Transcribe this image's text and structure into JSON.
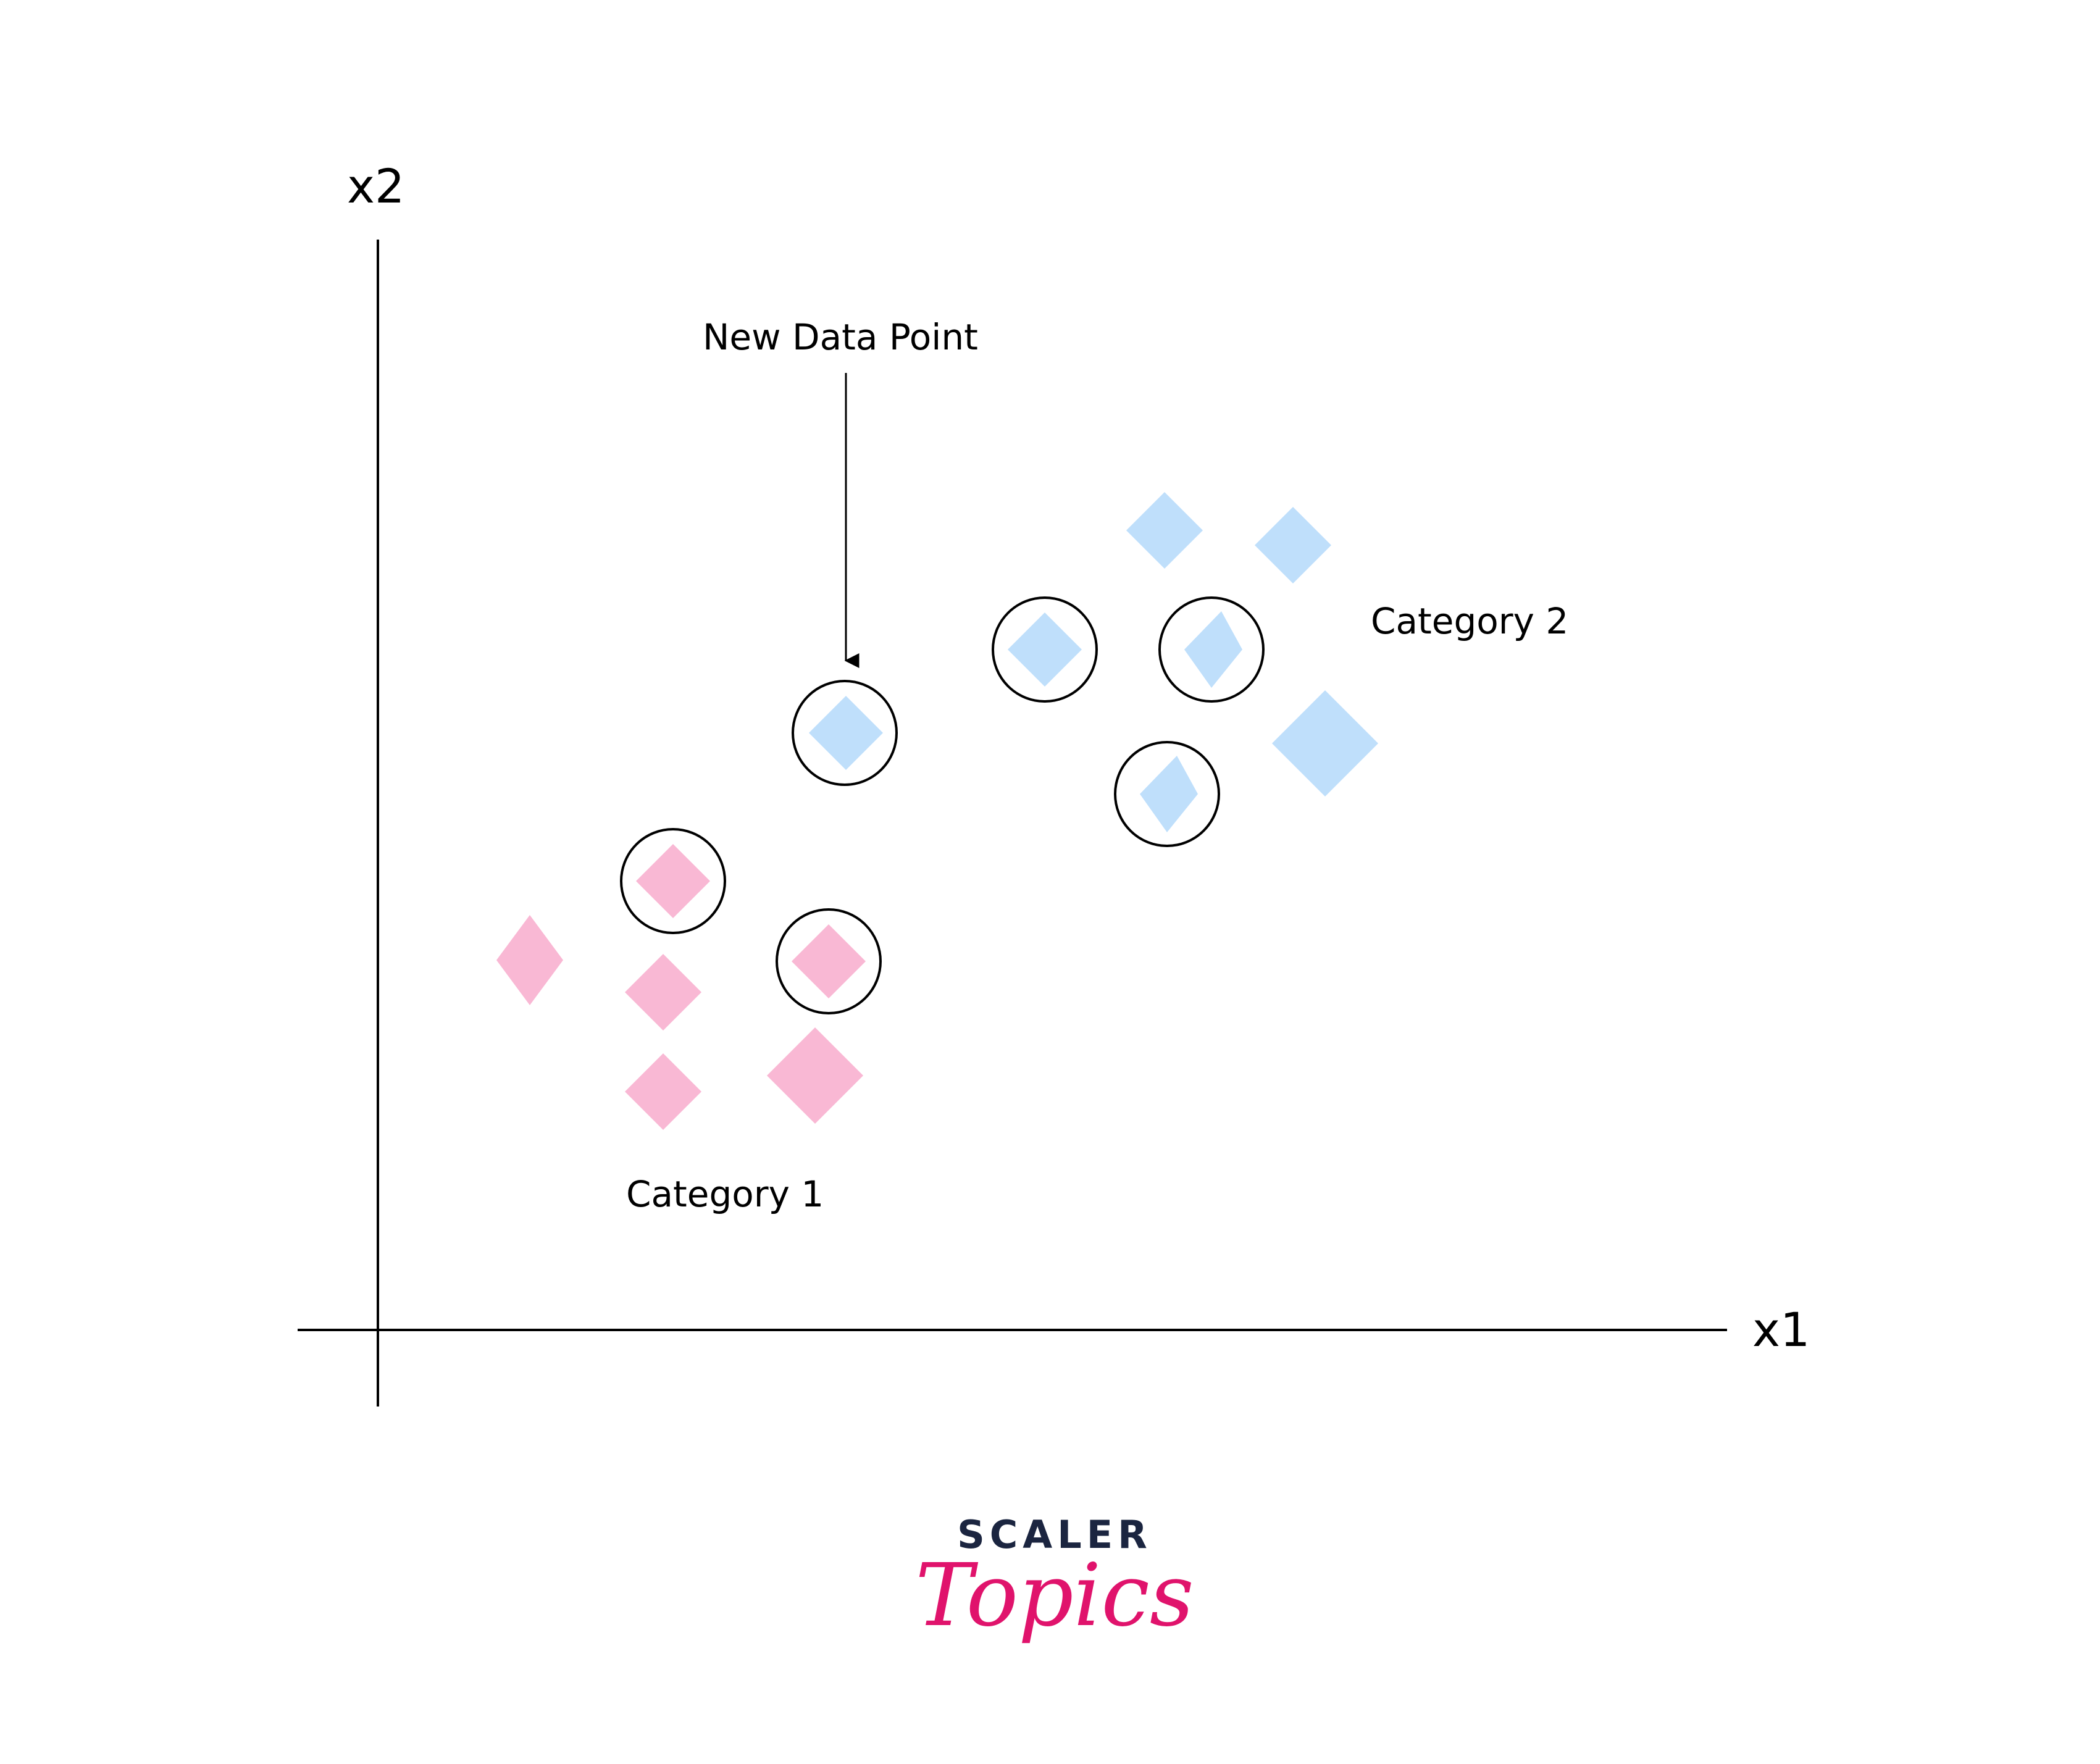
{
  "axes": {
    "x_label": "x1",
    "y_label": "x2",
    "line_color": "#000000"
  },
  "annotations": {
    "new_point": "New Data Point",
    "category_1": "Category 1",
    "category_2": "Category 2"
  },
  "colors": {
    "category_1": "#f9b8d4",
    "category_2": "#bfdffb",
    "ring": "#000000",
    "logo_dark": "#1b2540",
    "logo_accent": "#e0136c"
  },
  "points": [
    {
      "category": "category_1",
      "shape": "diamond",
      "neighbor": false
    },
    {
      "category": "category_1",
      "shape": "diamond",
      "neighbor": false
    },
    {
      "category": "category_1",
      "shape": "diamond",
      "neighbor": false
    },
    {
      "category": "category_1",
      "shape": "diamond",
      "neighbor": false
    },
    {
      "category": "category_1",
      "shape": "diamond",
      "neighbor": true
    },
    {
      "category": "category_1",
      "shape": "diamond",
      "neighbor": true
    },
    {
      "category": "new",
      "shape": "diamond",
      "neighbor": true
    },
    {
      "category": "category_2",
      "shape": "diamond",
      "neighbor": true
    },
    {
      "category": "category_2",
      "shape": "diamond",
      "neighbor": true
    },
    {
      "category": "category_2",
      "shape": "diamond",
      "neighbor": true
    },
    {
      "category": "category_2",
      "shape": "diamond",
      "neighbor": false
    },
    {
      "category": "category_2",
      "shape": "diamond",
      "neighbor": false
    },
    {
      "category": "category_2",
      "shape": "diamond",
      "neighbor": false
    }
  ],
  "logo": {
    "top": "SCALER",
    "bottom": "Topics"
  }
}
